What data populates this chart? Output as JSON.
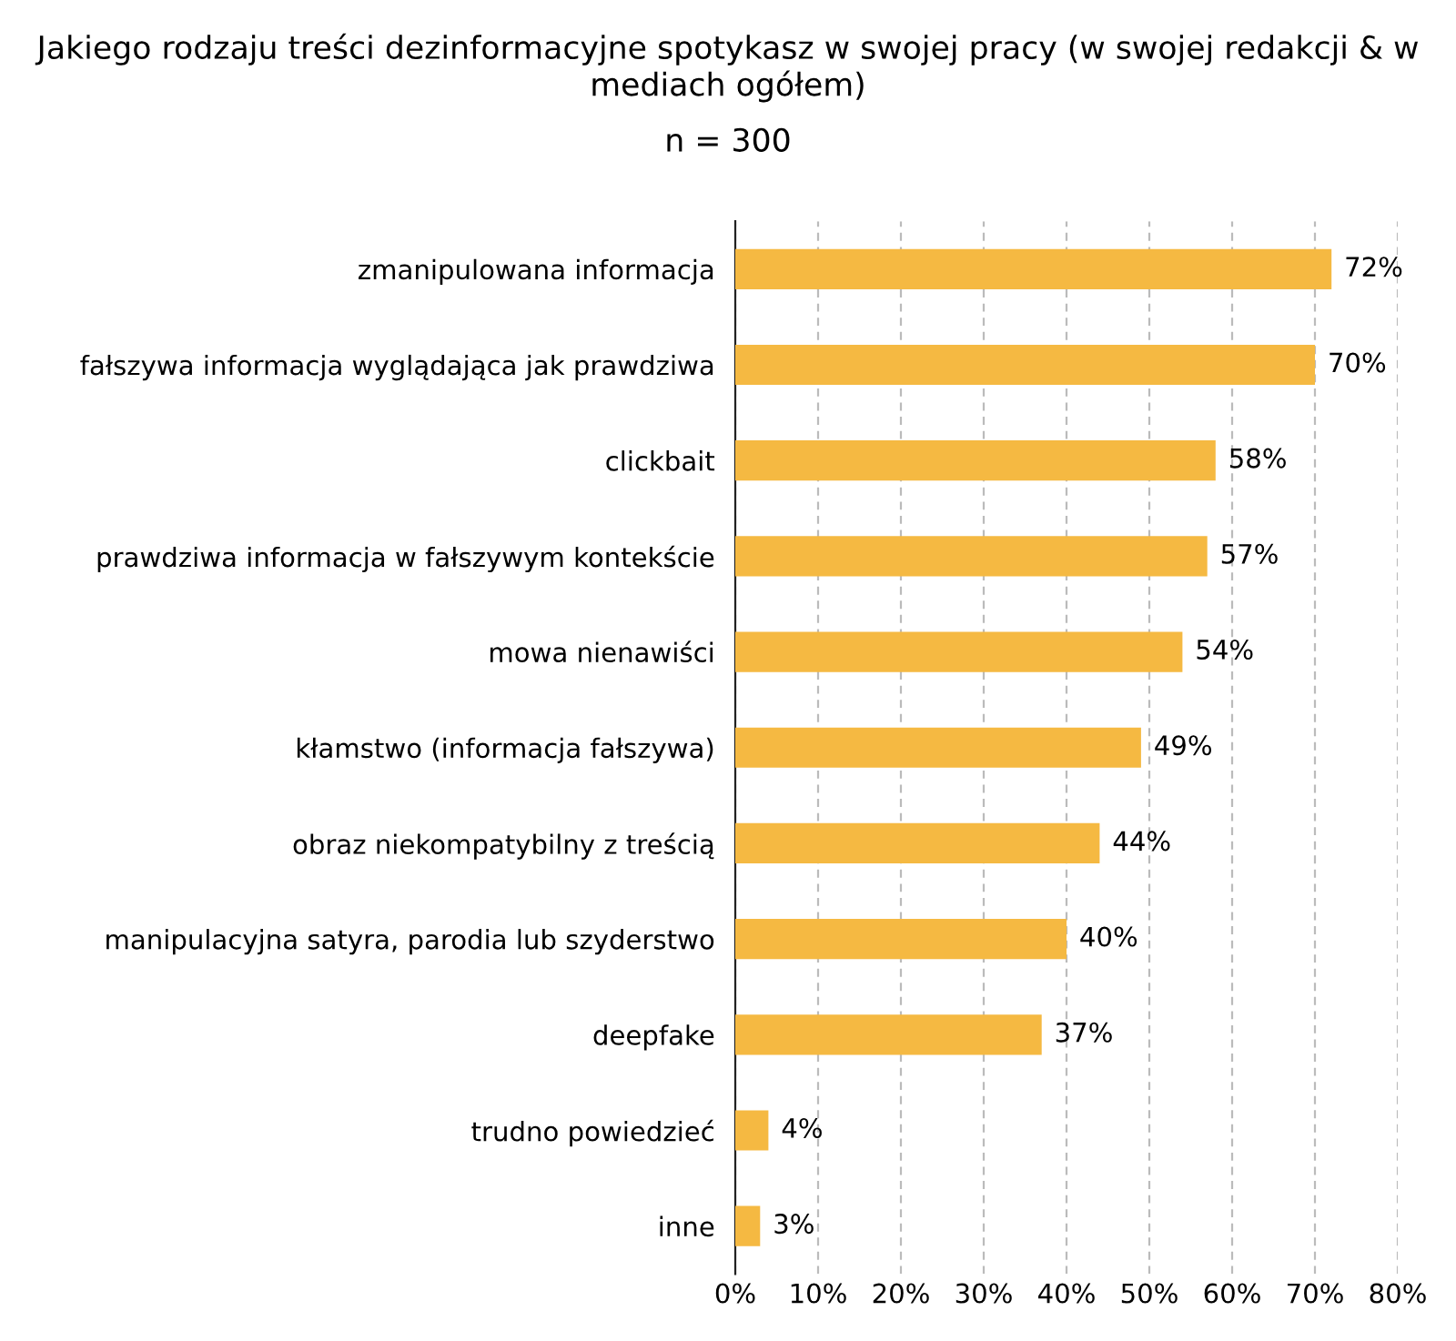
{
  "chart_data": {
    "type": "bar",
    "orientation": "horizontal",
    "title": "Jakiego rodzaju treści dezinformacyjne spotykasz w swojej pracy (w swojej redakcji & w mediach ogółem)",
    "subtitle": "n = 300",
    "categories": [
      "zmanipulowana informacja",
      "fałszywa informacja wyglądająca jak prawdziwa",
      "clickbait",
      "prawdziwa informacja w fałszywym kontekście",
      "mowa nienawiści",
      "kłamstwo (informacja fałszywa)",
      "obraz niekompatybilny z treścią",
      "manipulacyjna satyra, parodia lub szyderstwo",
      "deepfake",
      "trudno powiedzieć",
      "inne"
    ],
    "values": [
      72,
      70,
      58,
      57,
      54,
      49,
      44,
      40,
      37,
      4,
      3
    ],
    "value_labels": [
      "72%",
      "70%",
      "58%",
      "57%",
      "54%",
      "49%",
      "44%",
      "40%",
      "37%",
      "4%",
      "3%"
    ],
    "color": "#f5b942",
    "xlim": [
      0,
      80
    ],
    "xticks": [
      {
        "value": 0,
        "label": "0%"
      },
      {
        "value": 10,
        "label": "10%"
      },
      {
        "value": 20,
        "label": "20%"
      },
      {
        "value": 30,
        "label": "30%"
      },
      {
        "value": 40,
        "label": "40%"
      },
      {
        "value": 50,
        "label": "50%"
      },
      {
        "value": 60,
        "label": "60%"
      },
      {
        "value": 70,
        "label": "70%"
      },
      {
        "value": 80,
        "label": "80%"
      }
    ],
    "grid": "x"
  }
}
